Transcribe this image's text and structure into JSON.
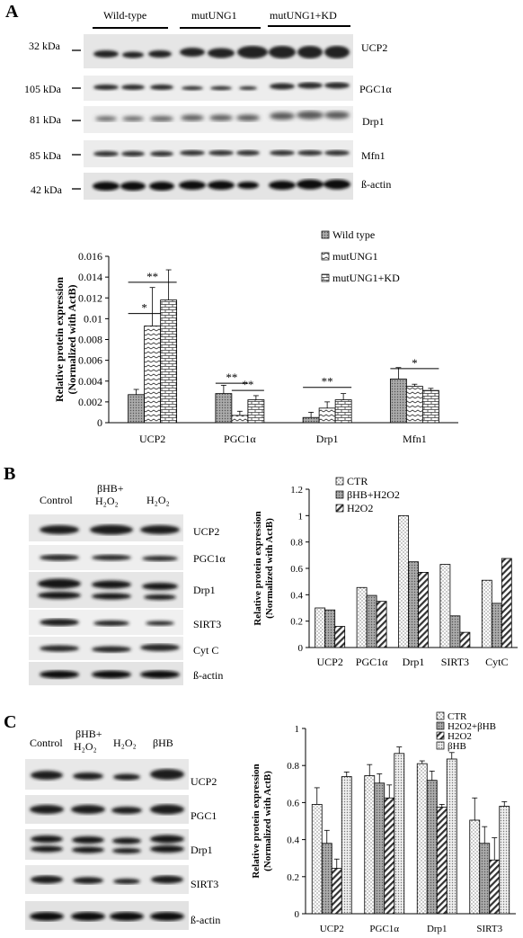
{
  "panelA": {
    "letter": "A",
    "groups": [
      "Wild-type",
      "mutUNG1",
      "mutUNG1+KD"
    ],
    "kda": [
      "32 kDa",
      "105 kDa",
      "81 kDa",
      "85 kDa",
      "42 kDa"
    ],
    "proteins": [
      "UCP2",
      "PGC1α",
      "Drp1",
      "Mfn1",
      "ß-actin"
    ]
  },
  "panelB": {
    "letter": "B",
    "lanes": [
      "Control",
      "βHB+",
      "H₂O₂",
      "H₂O₂"
    ],
    "proteins": [
      "UCP2",
      "PGC1α",
      "Drp1",
      "SIRT3",
      "Cyt C",
      "ß-actin"
    ]
  },
  "panelC": {
    "letter": "C",
    "lanes": [
      "Control",
      "βHB+",
      "H₂O₂",
      "H₂O₂",
      "βHB"
    ],
    "proteins": [
      "UCP2",
      "PGC1",
      "Drp1",
      "SIRT3",
      "ß-actin"
    ]
  },
  "chart_data": [
    {
      "type": "bar",
      "ylabel": "Relative protein expression (Normalized with ActB)",
      "ylabel_lines": [
        "Relative protein expression",
        "(Normalized with ActB)"
      ],
      "categories": [
        "UCP2",
        "PGC1α",
        "Drp1",
        "Mfn1"
      ],
      "ylim": [
        0,
        0.016
      ],
      "yticks": [
        "0",
        "0.002",
        "0.004",
        "0.006",
        "0.008",
        "0.01",
        "0.012",
        "0.014",
        "0.016"
      ],
      "legend": "top-right",
      "series": [
        {
          "name": "Wild type",
          "values": [
            0.0027,
            0.0028,
            0.0005,
            0.0042
          ],
          "errors": [
            0.0005,
            0.0008,
            0.0005,
            0.0011
          ]
        },
        {
          "name": "mutUNG1",
          "values": [
            0.0093,
            0.0007,
            0.0014,
            0.0035
          ],
          "errors": [
            0.0037,
            0.0004,
            0.0006,
            0.0002
          ]
        },
        {
          "name": "mutUNG1+KD",
          "values": [
            0.0118,
            0.0022,
            0.0022,
            0.0031
          ],
          "errors": [
            0.0029,
            0.0004,
            0.0006,
            0.0002
          ]
        }
      ],
      "significance": [
        "**",
        "*",
        "**",
        "**",
        "**",
        "*"
      ]
    },
    {
      "type": "bar",
      "ylabel": "Relative protein expression (Normalized with ActB)",
      "ylabel_lines": [
        "Relative protein expression",
        "(Normalized with ActB)"
      ],
      "categories": [
        "UCP2",
        "PGC1α",
        "Drp1",
        "SIRT3",
        "CytC"
      ],
      "ylim": [
        0,
        1.2
      ],
      "yticks": [
        "0",
        "0.2",
        "0.4",
        "0.6",
        "0.8",
        "1",
        "1.2"
      ],
      "legend": "top-right",
      "series": [
        {
          "name": "CTR",
          "values": [
            0.3,
            0.455,
            1.0,
            0.63,
            0.51
          ]
        },
        {
          "name": "βHB+H2O2",
          "values": [
            0.285,
            0.395,
            0.65,
            0.24,
            0.335
          ]
        },
        {
          "name": "H2O2",
          "values": [
            0.16,
            0.35,
            0.57,
            0.115,
            0.675
          ]
        }
      ]
    },
    {
      "type": "bar",
      "ylabel": "Relative protein expression (Normalized with ActB)",
      "ylabel_lines": [
        "Relative protein expression",
        "(Normalized with ActB)"
      ],
      "categories": [
        "UCP2",
        "PGC1α",
        "Drp1",
        "SIRT3"
      ],
      "ylim": [
        0,
        1
      ],
      "yticks": [
        "0",
        "0.2",
        "0.4",
        "0.6",
        "0.8",
        "1"
      ],
      "legend": "top-right",
      "series": [
        {
          "name": "CTR",
          "values": [
            0.59,
            0.745,
            0.81,
            0.505
          ],
          "errors": [
            0.09,
            0.06,
            0.015,
            0.12
          ]
        },
        {
          "name": "H2O2+βHB",
          "values": [
            0.38,
            0.705,
            0.72,
            0.38
          ],
          "errors": [
            0.07,
            0.05,
            0.05,
            0.09
          ]
        },
        {
          "name": "H2O2",
          "values": [
            0.245,
            0.625,
            0.575,
            0.29
          ],
          "errors": [
            0.05,
            0.07,
            0.015,
            0.12
          ]
        },
        {
          "name": "βHB",
          "values": [
            0.74,
            0.865,
            0.835,
            0.58
          ],
          "errors": [
            0.025,
            0.035,
            0.035,
            0.025
          ]
        }
      ]
    }
  ]
}
